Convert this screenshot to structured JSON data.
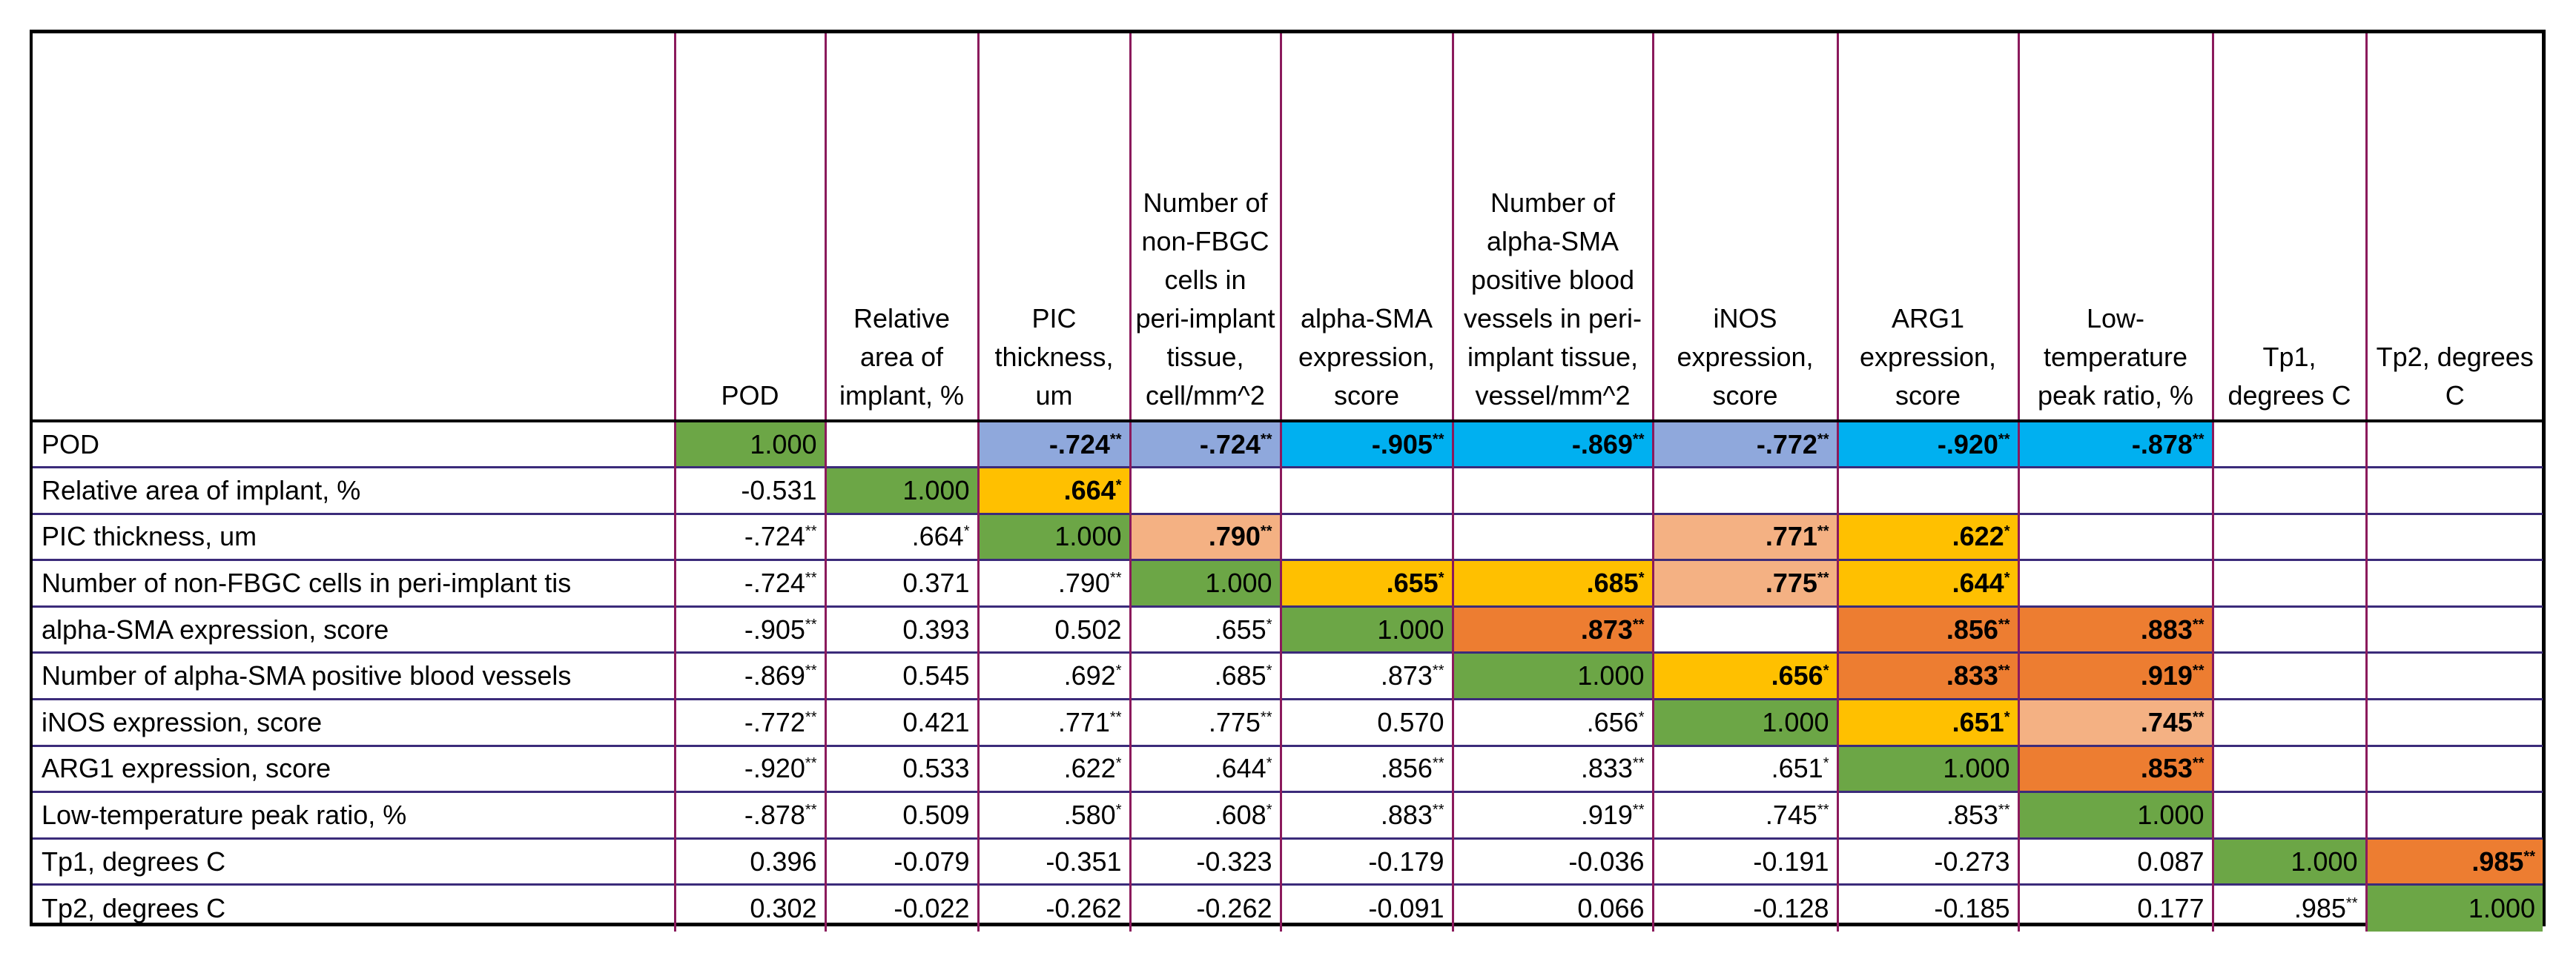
{
  "colors": {
    "green": "#6ca646",
    "blue_light": "#8fa8dc",
    "blue_cyan": "#00b0f0",
    "gold": "#ffc000",
    "salmon": "#f4b183",
    "orange": "#ed7d31"
  },
  "columns": [
    "POD",
    "Relative area of implant, %",
    "PIC thickness, um",
    "Number of non-FBGC cells in peri-implant tissue, cell/mm^2",
    "alpha-SMA expression, score",
    "Number of alpha-SMA positive blood vessels in peri-implant tissue, vessel/mm^2",
    "iNOS expression, score",
    "ARG1 expression, score",
    "Low-temperature peak ratio, %",
    "Tp1, degrees C",
    "Tp2, degrees C"
  ],
  "rows": [
    {
      "label": "POD",
      "cells": [
        {
          "v": "1.000",
          "fill": "green"
        },
        {
          "v": ""
        },
        {
          "v": "-.724",
          "sup": "**",
          "bold": true,
          "fill": "blue_light"
        },
        {
          "v": "-.724",
          "sup": "**",
          "bold": true,
          "fill": "blue_light"
        },
        {
          "v": "-.905",
          "sup": "**",
          "bold": true,
          "fill": "blue_cyan"
        },
        {
          "v": "-.869",
          "sup": "**",
          "bold": true,
          "fill": "blue_cyan"
        },
        {
          "v": "-.772",
          "sup": "**",
          "bold": true,
          "fill": "blue_light"
        },
        {
          "v": "-.920",
          "sup": "**",
          "bold": true,
          "fill": "blue_cyan"
        },
        {
          "v": "-.878",
          "sup": "**",
          "bold": true,
          "fill": "blue_cyan"
        },
        {
          "v": ""
        },
        {
          "v": ""
        }
      ]
    },
    {
      "label": "Relative area of implant, %",
      "cells": [
        {
          "v": "-0.531"
        },
        {
          "v": "1.000",
          "fill": "green"
        },
        {
          "v": ".664",
          "sup": "*",
          "bold": true,
          "fill": "gold"
        },
        {
          "v": ""
        },
        {
          "v": ""
        },
        {
          "v": ""
        },
        {
          "v": ""
        },
        {
          "v": ""
        },
        {
          "v": ""
        },
        {
          "v": ""
        },
        {
          "v": ""
        }
      ]
    },
    {
      "label": "PIC thickness, um",
      "cells": [
        {
          "v": "-.724",
          "sup": "**"
        },
        {
          "v": ".664",
          "sup": "*"
        },
        {
          "v": "1.000",
          "fill": "green"
        },
        {
          "v": ".790",
          "sup": "**",
          "bold": true,
          "fill": "salmon"
        },
        {
          "v": ""
        },
        {
          "v": ""
        },
        {
          "v": ".771",
          "sup": "**",
          "bold": true,
          "fill": "salmon"
        },
        {
          "v": ".622",
          "sup": "*",
          "bold": true,
          "fill": "gold"
        },
        {
          "v": ""
        },
        {
          "v": ""
        },
        {
          "v": ""
        }
      ]
    },
    {
      "label": "Number of non-FBGC cells in peri-implant tis",
      "cells": [
        {
          "v": "-.724",
          "sup": "**"
        },
        {
          "v": "0.371"
        },
        {
          "v": ".790",
          "sup": "**"
        },
        {
          "v": "1.000",
          "fill": "green"
        },
        {
          "v": ".655",
          "sup": "*",
          "bold": true,
          "fill": "gold"
        },
        {
          "v": ".685",
          "sup": "*",
          "bold": true,
          "fill": "gold"
        },
        {
          "v": ".775",
          "sup": "**",
          "bold": true,
          "fill": "salmon"
        },
        {
          "v": ".644",
          "sup": "*",
          "bold": true,
          "fill": "gold"
        },
        {
          "v": ""
        },
        {
          "v": ""
        },
        {
          "v": ""
        }
      ]
    },
    {
      "label": "alpha-SMA expression, score",
      "cells": [
        {
          "v": "-.905",
          "sup": "**"
        },
        {
          "v": "0.393"
        },
        {
          "v": "0.502"
        },
        {
          "v": ".655",
          "sup": "*"
        },
        {
          "v": "1.000",
          "fill": "green"
        },
        {
          "v": ".873",
          "sup": "**",
          "bold": true,
          "fill": "orange"
        },
        {
          "v": ""
        },
        {
          "v": ".856",
          "sup": "**",
          "bold": true,
          "fill": "orange"
        },
        {
          "v": ".883",
          "sup": "**",
          "bold": true,
          "fill": "orange"
        },
        {
          "v": ""
        },
        {
          "v": ""
        }
      ]
    },
    {
      "label": "Number of alpha-SMA positive blood vessels",
      "cells": [
        {
          "v": "-.869",
          "sup": "**"
        },
        {
          "v": "0.545"
        },
        {
          "v": ".692",
          "sup": "*"
        },
        {
          "v": ".685",
          "sup": "*"
        },
        {
          "v": ".873",
          "sup": "**"
        },
        {
          "v": "1.000",
          "fill": "green"
        },
        {
          "v": ".656",
          "sup": "*",
          "bold": true,
          "fill": "gold"
        },
        {
          "v": ".833",
          "sup": "**",
          "bold": true,
          "fill": "orange"
        },
        {
          "v": ".919",
          "sup": "**",
          "bold": true,
          "fill": "orange"
        },
        {
          "v": ""
        },
        {
          "v": ""
        }
      ]
    },
    {
      "label": "iNOS expression, score",
      "cells": [
        {
          "v": "-.772",
          "sup": "**"
        },
        {
          "v": "0.421"
        },
        {
          "v": ".771",
          "sup": "**"
        },
        {
          "v": ".775",
          "sup": "**"
        },
        {
          "v": "0.570"
        },
        {
          "v": ".656",
          "sup": "*"
        },
        {
          "v": "1.000",
          "fill": "green"
        },
        {
          "v": ".651",
          "sup": "*",
          "bold": true,
          "fill": "gold"
        },
        {
          "v": ".745",
          "sup": "**",
          "bold": true,
          "fill": "salmon"
        },
        {
          "v": ""
        },
        {
          "v": ""
        }
      ]
    },
    {
      "label": "ARG1 expression, score",
      "cells": [
        {
          "v": "-.920",
          "sup": "**"
        },
        {
          "v": "0.533"
        },
        {
          "v": ".622",
          "sup": "*"
        },
        {
          "v": ".644",
          "sup": "*"
        },
        {
          "v": ".856",
          "sup": "**"
        },
        {
          "v": ".833",
          "sup": "**"
        },
        {
          "v": ".651",
          "sup": "*"
        },
        {
          "v": "1.000",
          "fill": "green"
        },
        {
          "v": ".853",
          "sup": "**",
          "bold": true,
          "fill": "orange"
        },
        {
          "v": ""
        },
        {
          "v": ""
        }
      ]
    },
    {
      "label": "Low-temperature peak ratio, %",
      "cells": [
        {
          "v": "-.878",
          "sup": "**"
        },
        {
          "v": "0.509"
        },
        {
          "v": ".580",
          "sup": "*"
        },
        {
          "v": ".608",
          "sup": "*"
        },
        {
          "v": ".883",
          "sup": "**"
        },
        {
          "v": ".919",
          "sup": "**"
        },
        {
          "v": ".745",
          "sup": "**"
        },
        {
          "v": ".853",
          "sup": "**"
        },
        {
          "v": "1.000",
          "fill": "green"
        },
        {
          "v": ""
        },
        {
          "v": ""
        }
      ]
    },
    {
      "label": "Tp1, degrees C",
      "cells": [
        {
          "v": "0.396"
        },
        {
          "v": "-0.079"
        },
        {
          "v": "-0.351"
        },
        {
          "v": "-0.323"
        },
        {
          "v": "-0.179"
        },
        {
          "v": "-0.036"
        },
        {
          "v": "-0.191"
        },
        {
          "v": "-0.273"
        },
        {
          "v": "0.087"
        },
        {
          "v": "1.000",
          "fill": "green"
        },
        {
          "v": ".985",
          "sup": "**",
          "bold": true,
          "fill": "orange"
        }
      ]
    },
    {
      "label": "Tp2, degrees C",
      "cells": [
        {
          "v": "0.302"
        },
        {
          "v": "-0.022"
        },
        {
          "v": "-0.262"
        },
        {
          "v": "-0.262"
        },
        {
          "v": "-0.091"
        },
        {
          "v": "0.066"
        },
        {
          "v": "-0.128"
        },
        {
          "v": "-0.185"
        },
        {
          "v": "0.177"
        },
        {
          "v": ".985",
          "sup": "**"
        },
        {
          "v": "1.000",
          "fill": "green"
        }
      ]
    }
  ]
}
